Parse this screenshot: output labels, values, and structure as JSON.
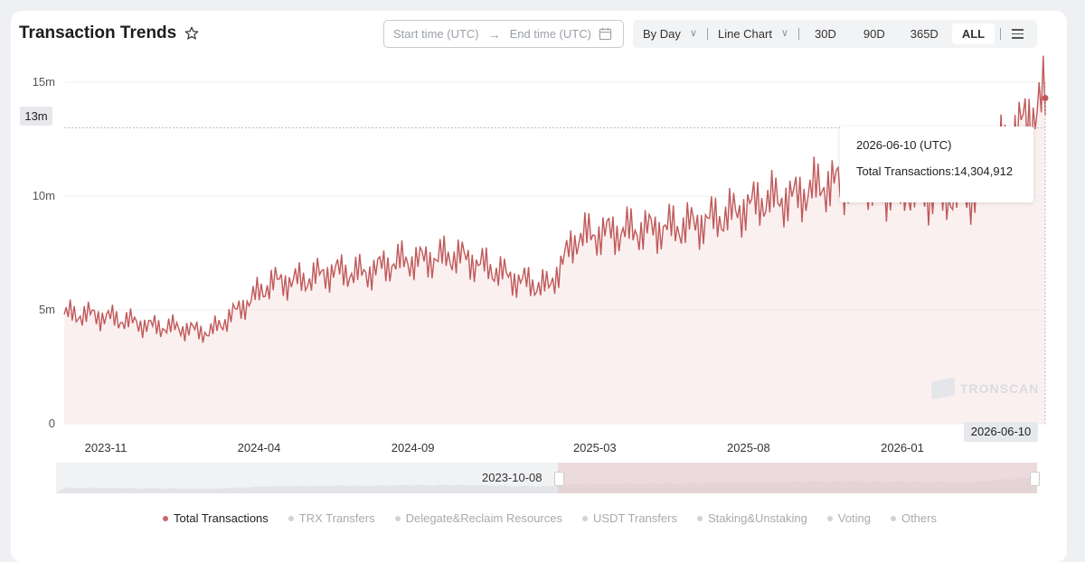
{
  "header": {
    "title": "Transaction Trends"
  },
  "daterange": {
    "start_placeholder": "Start time (UTC)",
    "end_placeholder": "End time (UTC)"
  },
  "toolbar": {
    "granularity": "By Day",
    "chart_type": "Line Chart",
    "ranges": [
      "30D",
      "90D",
      "365D",
      "ALL"
    ],
    "active_range": "ALL"
  },
  "tooltip": {
    "date": "2026-06-10 (UTC)",
    "key": "Total Transactions:",
    "value": "14,304,912"
  },
  "crosshair": {
    "y_label": "13m",
    "x_label": "2026-06-10"
  },
  "watermark": "TRONSCAN",
  "slider": {
    "label": "2023-10-08"
  },
  "legend": [
    "Total Transactions",
    "TRX Transfers",
    "Delegate&Reclaim Resources",
    "USDT Transfers",
    "Staking&Unstaking",
    "Voting",
    "Others"
  ],
  "colors": {
    "series": "#c0595a",
    "accent": "#c66"
  },
  "chart_data": {
    "type": "area",
    "title": "Transaction Trends",
    "ylim": [
      0,
      15000000
    ],
    "yticks": [
      "0",
      "5m",
      "10m",
      "15m"
    ],
    "xticks": [
      "2023-11",
      "2024-04",
      "2024-09",
      "2025-03",
      "2025-08",
      "2026-01"
    ],
    "grid": true,
    "legend_position": "bottom",
    "series": [
      {
        "name": "Total Transactions",
        "x": [
          "2023-11-01",
          "2023-12-01",
          "2024-01-01",
          "2024-02-01",
          "2024-03-01",
          "2024-04-01",
          "2024-05-01",
          "2024-06-01",
          "2024-07-01",
          "2024-08-01",
          "2024-09-01",
          "2024-10-01",
          "2024-11-01",
          "2024-12-01",
          "2025-01-01",
          "2025-02-01",
          "2025-03-01",
          "2025-04-01",
          "2025-05-01",
          "2025-06-01",
          "2025-07-01",
          "2025-08-01",
          "2025-09-01",
          "2025-10-01",
          "2025-11-01",
          "2025-12-01",
          "2026-01-01",
          "2026-02-01",
          "2026-03-01",
          "2026-04-01",
          "2026-05-01",
          "2026-06-10"
        ],
        "values": [
          4800000,
          4600000,
          4300000,
          4200000,
          4000000,
          5100000,
          6200000,
          6300000,
          6700000,
          6600000,
          7100000,
          7200000,
          7400000,
          6900000,
          6300000,
          6000000,
          8200000,
          8400000,
          8500000,
          8600000,
          8800000,
          9200000,
          9800000,
          9900000,
          10500000,
          10600000,
          10300000,
          10200000,
          10000000,
          10100000,
          12200000,
          14304912
        ]
      }
    ]
  }
}
